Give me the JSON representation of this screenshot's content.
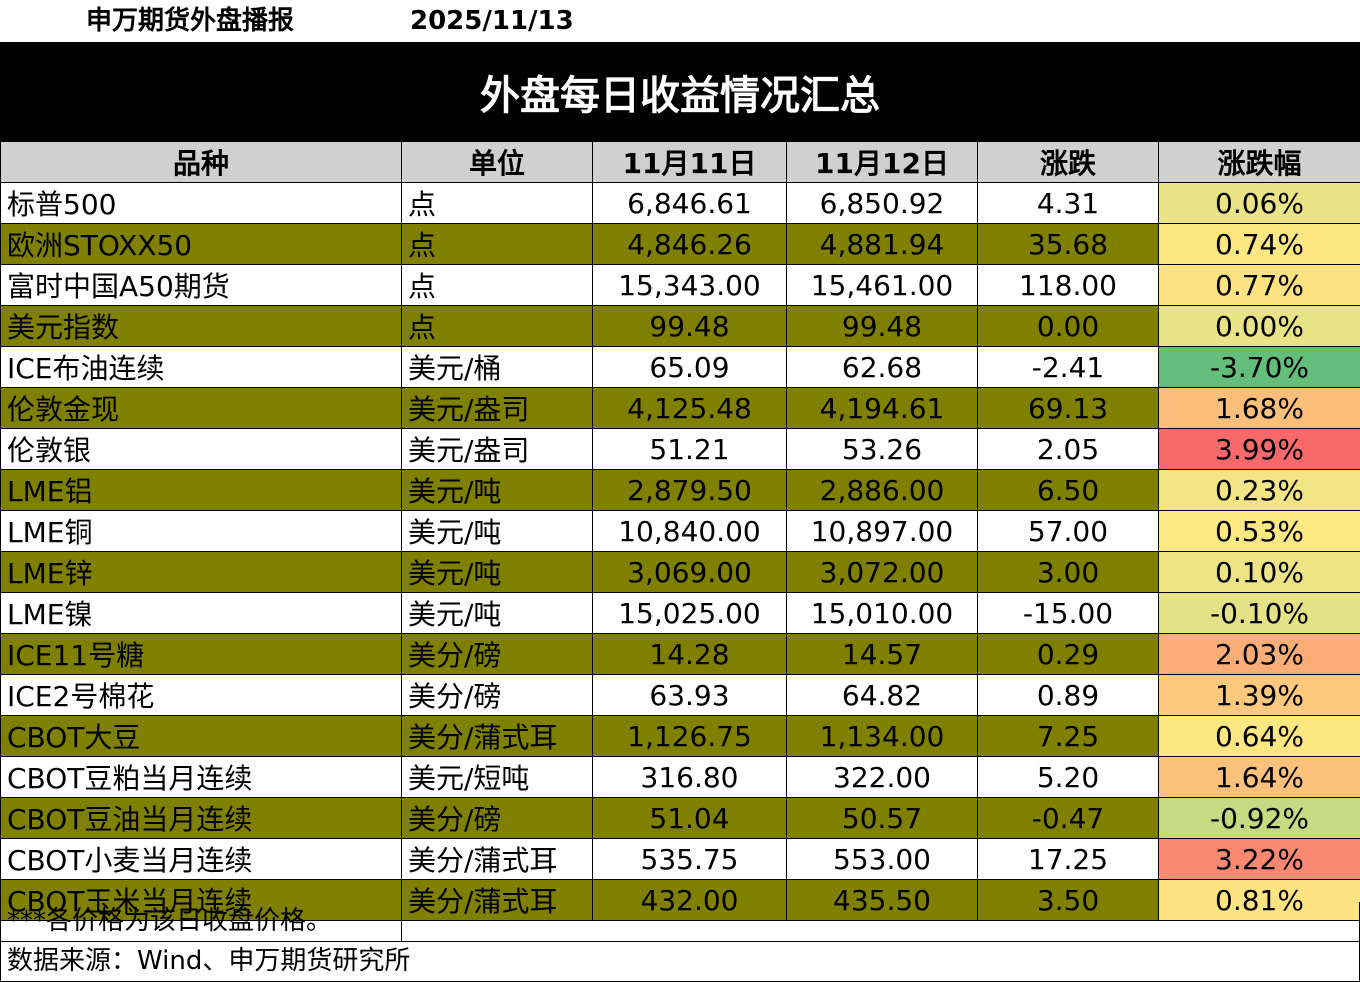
{
  "header": {
    "source": "申万期货外盘播报",
    "date": "2025/11/13",
    "title": "外盘每日收益情况汇总"
  },
  "columns": [
    "品种",
    "单位",
    "11月11日",
    "11月12日",
    "涨跌",
    "涨跌幅"
  ],
  "rows": [
    {
      "name": "标普500",
      "unit": "点",
      "d1": "6,846.61",
      "d2": "6,850.92",
      "chg": "4.31",
      "pct": "0.06%",
      "pct_color": "#ebe487",
      "highlight": false
    },
    {
      "name": "欧洲STOXX50",
      "unit": "点",
      "d1": "4,846.26",
      "d2": "4,881.94",
      "chg": "35.68",
      "pct": "0.74%",
      "pct_color": "#fee683",
      "highlight": true
    },
    {
      "name": "富时中国A50期货",
      "unit": "点",
      "d1": "15,343.00",
      "d2": "15,461.00",
      "chg": "118.00",
      "pct": "0.77%",
      "pct_color": "#fee382",
      "highlight": false
    },
    {
      "name": "美元指数",
      "unit": "点",
      "d1": "99.48",
      "d2": "99.48",
      "chg": "0.00",
      "pct": "0.00%",
      "pct_color": "#e8e387",
      "highlight": true
    },
    {
      "name": "ICE布油连续",
      "unit": "美元/桶",
      "d1": "65.09",
      "d2": "62.68",
      "chg": "-2.41",
      "pct": "-3.70%",
      "pct_color": "#63be7b",
      "highlight": false
    },
    {
      "name": "伦敦金现",
      "unit": "美元/盎司",
      "d1": "4,125.48",
      "d2": "4,194.61",
      "chg": "69.13",
      "pct": "1.68%",
      "pct_color": "#fcbf7b",
      "highlight": true
    },
    {
      "name": "伦敦银",
      "unit": "美元/盎司",
      "d1": "51.21",
      "d2": "53.26",
      "chg": "2.05",
      "pct": "3.99%",
      "pct_color": "#f8696b",
      "highlight": false
    },
    {
      "name": "LME铝",
      "unit": "美元/吨",
      "d1": "2,879.50",
      "d2": "2,886.00",
      "chg": "6.50",
      "pct": "0.23%",
      "pct_color": "#f3e585",
      "highlight": true
    },
    {
      "name": "LME铜",
      "unit": "美元/吨",
      "d1": "10,840.00",
      "d2": "10,897.00",
      "chg": "57.00",
      "pct": "0.53%",
      "pct_color": "#fde984",
      "highlight": false
    },
    {
      "name": "LME锌",
      "unit": "美元/吨",
      "d1": "3,069.00",
      "d2": "3,072.00",
      "chg": "3.00",
      "pct": "0.10%",
      "pct_color": "#ede486",
      "highlight": true
    },
    {
      "name": "LME镍",
      "unit": "美元/吨",
      "d1": "15,025.00",
      "d2": "15,010.00",
      "chg": "-15.00",
      "pct": "-0.10%",
      "pct_color": "#e3e287",
      "highlight": false
    },
    {
      "name": "ICE11号糖",
      "unit": "美分/磅",
      "d1": "14.28",
      "d2": "14.57",
      "chg": "0.29",
      "pct": "2.03%",
      "pct_color": "#fbad78",
      "highlight": true
    },
    {
      "name": "ICE2号棉花",
      "unit": "美分/磅",
      "d1": "63.93",
      "d2": "64.82",
      "chg": "0.89",
      "pct": "1.39%",
      "pct_color": "#fdc97d",
      "highlight": false
    },
    {
      "name": "CBOT大豆",
      "unit": "美分/蒲式耳",
      "d1": "1,126.75",
      "d2": "1,134.00",
      "chg": "7.25",
      "pct": "0.64%",
      "pct_color": "#fee683",
      "highlight": true
    },
    {
      "name": "CBOT豆粕当月连续",
      "unit": "美元/短吨",
      "d1": "316.80",
      "d2": "322.00",
      "chg": "5.20",
      "pct": "1.64%",
      "pct_color": "#fcc17c",
      "highlight": false
    },
    {
      "name": "CBOT豆油当月连续",
      "unit": "美分/磅",
      "d1": "51.04",
      "d2": "50.57",
      "chg": "-0.47",
      "pct": "-0.92%",
      "pct_color": "#c6db81",
      "highlight": true
    },
    {
      "name": "CBOT小麦当月连续",
      "unit": "美分/蒲式耳",
      "d1": "535.75",
      "d2": "553.00",
      "chg": "17.25",
      "pct": "3.22%",
      "pct_color": "#f98970",
      "highlight": false
    },
    {
      "name": "CBOT玉米当月连续",
      "unit": "美分/蒲式耳",
      "d1": "432.00",
      "d2": "435.50",
      "chg": "3.50",
      "pct": "0.81%",
      "pct_color": "#fee382",
      "highlight": true
    }
  ],
  "footer": {
    "note": "***各价格为该日收盘价格。",
    "source": "数据来源：Wind、申万期货研究所"
  },
  "colors": {
    "banner_bg": "#000000",
    "header_bg": "#d0d0d0",
    "highlight_row": "#808000"
  }
}
